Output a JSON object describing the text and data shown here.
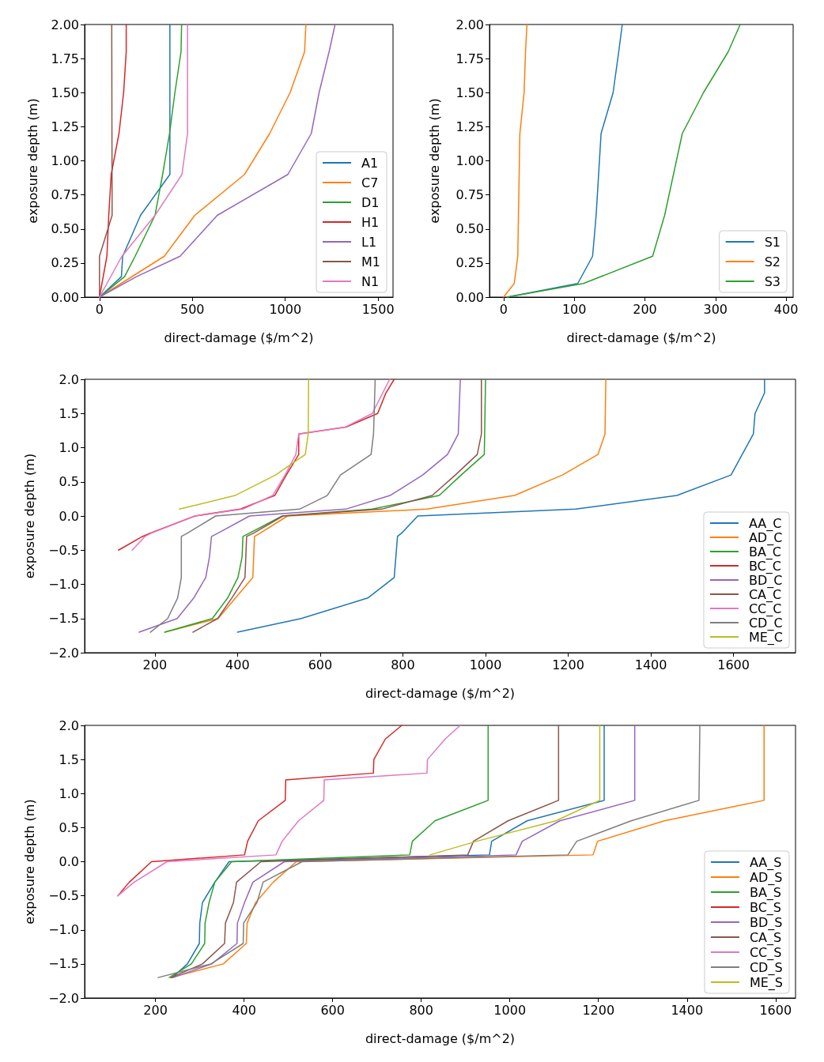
{
  "chart_data": [
    {
      "type": "line",
      "xlabel": "direct-damage ($/m^2)",
      "ylabel": "exposure depth (m)",
      "xlim": [
        -80,
        1580
      ],
      "xticks": [
        0,
        500,
        1000,
        1500
      ],
      "ylim": [
        0,
        2
      ],
      "yticks": [
        {
          "value": 0,
          "label": "0.00"
        },
        {
          "value": 0.25,
          "label": "0.25"
        },
        {
          "value": 0.5,
          "label": "0.50"
        },
        {
          "value": 0.75,
          "label": "0.75"
        },
        {
          "value": 1,
          "label": "1.00"
        },
        {
          "value": 1.25,
          "label": "1.25"
        },
        {
          "value": 1.5,
          "label": "1.50"
        },
        {
          "value": 1.75,
          "label": "1.75"
        },
        {
          "value": 2,
          "label": "2.00"
        }
      ],
      "legend": "bottom right",
      "series": [
        {
          "name": "A1",
          "color": "#1f77b4",
          "x": [
            0,
            118,
            125,
            221,
            379,
            379
          ],
          "values": [
            0,
            0.15,
            0.3,
            0.6,
            0.9,
            2.0
          ]
        },
        {
          "name": "C7",
          "color": "#ff7f0e",
          "x": [
            0,
            349,
            513,
            781,
            916,
            1026,
            1104,
            1111
          ],
          "values": [
            0,
            0.3,
            0.6,
            0.9,
            1.2,
            1.5,
            1.8,
            2.0
          ]
        },
        {
          "name": "D1",
          "color": "#2ca02c",
          "x": [
            0,
            135,
            192,
            299,
            340,
            377,
            406,
            439,
            442
          ],
          "values": [
            0,
            0.15,
            0.3,
            0.6,
            0.9,
            1.2,
            1.5,
            1.8,
            2.0
          ]
        },
        {
          "name": "H1",
          "color": "#d62728",
          "x": [
            0,
            40,
            50,
            63,
            105,
            130,
            144,
            144
          ],
          "values": [
            0,
            0.3,
            0.6,
            0.9,
            1.2,
            1.5,
            1.8,
            2.0
          ]
        },
        {
          "name": "L1",
          "color": "#9467bd",
          "x": [
            0,
            199,
            434,
            634,
            1014,
            1140,
            1182,
            1236,
            1268
          ],
          "values": [
            0,
            0.15,
            0.3,
            0.6,
            0.9,
            1.2,
            1.5,
            1.8,
            2.0
          ]
        },
        {
          "name": "M1",
          "color": "#8c564b",
          "x": [
            0,
            0,
            68,
            66
          ],
          "values": [
            0,
            0.3,
            0.6,
            2.0
          ]
        },
        {
          "name": "N1",
          "color": "#e377c2",
          "x": [
            0,
            121,
            299,
            444,
            474,
            474
          ],
          "values": [
            0,
            0.3,
            0.6,
            0.9,
            1.2,
            2.0
          ]
        }
      ]
    },
    {
      "type": "line",
      "xlabel": "direct-damage ($/m^2)",
      "ylabel": "exposure depth (m)",
      "xlim": [
        -20,
        410
      ],
      "xticks": [
        0,
        100,
        200,
        300,
        400
      ],
      "ylim": [
        0,
        2
      ],
      "yticks": [
        {
          "value": 0,
          "label": "0.00"
        },
        {
          "value": 0.25,
          "label": "0.25"
        },
        {
          "value": 0.5,
          "label": "0.50"
        },
        {
          "value": 0.75,
          "label": "0.75"
        },
        {
          "value": 1,
          "label": "1.00"
        },
        {
          "value": 1.25,
          "label": "1.25"
        },
        {
          "value": 1.5,
          "label": "1.50"
        },
        {
          "value": 1.75,
          "label": "1.75"
        },
        {
          "value": 2,
          "label": "2.00"
        }
      ],
      "legend": "bottom right",
      "series": [
        {
          "name": "S1",
          "color": "#1f77b4",
          "x": [
            5,
            105,
            126,
            131,
            138,
            155,
            163,
            168
          ],
          "values": [
            0,
            0.1,
            0.3,
            0.6,
            1.2,
            1.5,
            1.8,
            2.0
          ]
        },
        {
          "name": "S2",
          "color": "#ff7f0e",
          "x": [
            0,
            15,
            20,
            21,
            23,
            29,
            31,
            33
          ],
          "values": [
            0,
            0.1,
            0.3,
            0.6,
            1.2,
            1.5,
            1.8,
            2.0
          ]
        },
        {
          "name": "S3",
          "color": "#2ca02c",
          "x": [
            5,
            113,
            211,
            228,
            253,
            283,
            318,
            335
          ],
          "values": [
            0,
            0.1,
            0.3,
            0.6,
            1.2,
            1.5,
            1.8,
            2.0
          ]
        }
      ]
    },
    {
      "type": "line",
      "xlabel": "direct-damage ($/m^2)",
      "ylabel": "exposure depth (m)",
      "xlim": [
        30,
        1750
      ],
      "xticks": [
        200,
        400,
        600,
        800,
        1000,
        1200,
        1400,
        1600
      ],
      "ylim": [
        -2,
        2
      ],
      "yticks": [
        {
          "value": -2,
          "label": "−2.0"
        },
        {
          "value": -1.5,
          "label": "−1.5"
        },
        {
          "value": -1,
          "label": "−1.0"
        },
        {
          "value": -0.5,
          "label": "−0.5"
        },
        {
          "value": 0,
          "label": "0.0"
        },
        {
          "value": 0.5,
          "label": "0.5"
        },
        {
          "value": 1,
          "label": "1.0"
        },
        {
          "value": 1.5,
          "label": "1.5"
        },
        {
          "value": 2,
          "label": "2.0"
        }
      ],
      "legend": "bottom right",
      "series": [
        {
          "name": "AA_C",
          "color": "#1f77b4",
          "x": [
            400,
            554,
            715,
            779,
            783,
            787,
            797,
            836,
            1218,
            1463,
            1594,
            1648,
            1652,
            1675,
            1675
          ],
          "values": [
            -1.7,
            -1.5,
            -1.2,
            -0.9,
            -0.6,
            -0.3,
            -0.25,
            0,
            0.1,
            0.3,
            0.6,
            1.2,
            1.5,
            1.8,
            2.0
          ]
        },
        {
          "name": "AD_C",
          "color": "#ff7f0e",
          "x": [
            224,
            353,
            437,
            439,
            441,
            455,
            521,
            858,
            1070,
            1186,
            1272,
            1289,
            1291
          ],
          "values": [
            -1.7,
            -1.5,
            -0.9,
            -0.6,
            -0.3,
            -0.25,
            0,
            0.1,
            0.3,
            0.6,
            0.9,
            1.2,
            2.0
          ]
        },
        {
          "name": "BA_C",
          "color": "#2ca02c",
          "x": [
            224,
            339,
            376,
            401,
            411,
            413,
            429,
            508,
            726,
            888,
            941,
            997,
            1000
          ],
          "values": [
            -1.7,
            -1.5,
            -1.2,
            -0.9,
            -0.6,
            -0.3,
            -0.25,
            0,
            0.1,
            0.3,
            0.6,
            0.9,
            2.0
          ]
        },
        {
          "name": "BC_C",
          "color": "#d62728",
          "x": [
            112,
            170,
            189,
            297,
            406,
            490,
            518,
            548,
            548,
            662,
            739,
            759,
            779
          ],
          "values": [
            -0.5,
            -0.3,
            -0.25,
            0,
            0.1,
            0.3,
            0.6,
            0.9,
            1.2,
            1.3,
            1.5,
            1.8,
            2.0
          ]
        },
        {
          "name": "BD_C",
          "color": "#9467bd",
          "x": [
            162,
            254,
            294,
            323,
            332,
            337,
            353,
            429,
            662,
            769,
            848,
            908,
            934,
            939
          ],
          "values": [
            -1.7,
            -1.5,
            -1.2,
            -0.9,
            -0.6,
            -0.3,
            -0.25,
            0,
            0.1,
            0.3,
            0.6,
            0.9,
            1.2,
            2.0
          ]
        },
        {
          "name": "CA_C",
          "color": "#8c564b",
          "x": [
            292,
            352,
            386,
            418,
            420,
            422,
            439,
            510,
            749,
            871,
            927,
            980,
            990,
            990
          ],
          "values": [
            -1.7,
            -1.5,
            -1.2,
            -0.9,
            -0.6,
            -0.3,
            -0.25,
            0,
            0.1,
            0.3,
            0.6,
            0.9,
            1.2,
            2.0
          ]
        },
        {
          "name": "CC_C",
          "color": "#e377c2",
          "x": [
            145,
            176,
            192,
            297,
            413,
            485,
            515,
            541,
            548,
            660,
            726,
            768
          ],
          "values": [
            -0.5,
            -0.3,
            -0.25,
            0,
            0.1,
            0.3,
            0.6,
            0.9,
            1.2,
            1.3,
            1.5,
            2.0
          ]
        },
        {
          "name": "CD_C",
          "color": "#7f7f7f",
          "x": [
            189,
            231,
            255,
            264,
            264,
            264,
            279,
            347,
            550,
            617,
            649,
            723,
            729,
            733
          ],
          "values": [
            -1.7,
            -1.5,
            -1.2,
            -0.9,
            -0.6,
            -0.3,
            -0.25,
            0,
            0.1,
            0.3,
            0.6,
            0.9,
            1.2,
            2.0
          ]
        },
        {
          "name": "ME_C",
          "color": "#bcbd22",
          "x": [
            259,
            394,
            492,
            564,
            571,
            572
          ],
          "values": [
            0.1,
            0.3,
            0.6,
            0.9,
            1.2,
            2.0
          ]
        }
      ]
    },
    {
      "type": "line",
      "xlabel": "direct-damage ($/m^2)",
      "ylabel": "exposure depth (m)",
      "xlim": [
        40,
        1645
      ],
      "xticks": [
        200,
        400,
        600,
        800,
        1000,
        1200,
        1400,
        1600
      ],
      "ylim": [
        -2,
        2
      ],
      "yticks": [
        {
          "value": -2,
          "label": "−2.0"
        },
        {
          "value": -1.5,
          "label": "−1.5"
        },
        {
          "value": -1,
          "label": "−1.0"
        },
        {
          "value": -0.5,
          "label": "−0.5"
        },
        {
          "value": 0,
          "label": "0.0"
        },
        {
          "value": 0.5,
          "label": "0.5"
        },
        {
          "value": 1,
          "label": "1.0"
        },
        {
          "value": 1.5,
          "label": "1.5"
        },
        {
          "value": 2,
          "label": "2.0"
        }
      ],
      "legend": "bottom right",
      "series": [
        {
          "name": "AA_S",
          "color": "#1f77b4",
          "x": [
            238,
            272,
            299,
            300,
            306,
            334,
            366,
            954,
            959,
            1039,
            1213,
            1213
          ],
          "values": [
            -1.7,
            -1.5,
            -1.2,
            -0.9,
            -0.6,
            -0.3,
            0,
            0.1,
            0.3,
            0.6,
            0.9,
            2.0
          ]
        },
        {
          "name": "AD_S",
          "color": "#ff7f0e",
          "x": [
            235,
            353,
            405,
            407,
            426,
            466,
            518,
            1188,
            1198,
            1349,
            1574,
            1574
          ],
          "values": [
            -1.7,
            -1.5,
            -1.2,
            -0.9,
            -0.6,
            -0.3,
            0,
            0.1,
            0.3,
            0.6,
            0.9,
            2.0
          ]
        },
        {
          "name": "BA_S",
          "color": "#2ca02c",
          "x": [
            231,
            281,
            311,
            312,
            321,
            334,
            372,
            774,
            780,
            831,
            951,
            951
          ],
          "values": [
            -1.7,
            -1.5,
            -1.2,
            -0.9,
            -0.6,
            -0.3,
            0,
            0.1,
            0.3,
            0.6,
            0.9,
            2.0
          ]
        },
        {
          "name": "BC_S",
          "color": "#d62728",
          "x": [
            115,
            141,
            191,
            401,
            408,
            432,
            493,
            494,
            692,
            693,
            719,
            756
          ],
          "values": [
            -0.5,
            -0.3,
            0,
            0.1,
            0.3,
            0.6,
            0.9,
            1.2,
            1.3,
            1.5,
            1.8,
            2.0
          ]
        },
        {
          "name": "BD_S",
          "color": "#9467bd",
          "x": [
            240,
            327,
            384,
            385,
            401,
            420,
            491,
            1014,
            1028,
            1113,
            1282,
            1282
          ],
          "values": [
            -1.7,
            -1.5,
            -1.2,
            -0.9,
            -0.6,
            -0.3,
            0,
            0.1,
            0.3,
            0.6,
            0.9,
            2.0
          ]
        },
        {
          "name": "CA_S",
          "color": "#8c564b",
          "x": [
            235,
            306,
            356,
            358,
            376,
            383,
            438,
            905,
            918,
            996,
            1110,
            1110
          ],
          "values": [
            -1.7,
            -1.5,
            -1.2,
            -0.9,
            -0.6,
            -0.3,
            0,
            0.1,
            0.3,
            0.6,
            0.9,
            2.0
          ]
        },
        {
          "name": "CC_S",
          "color": "#e377c2",
          "x": [
            115,
            152,
            226,
            472,
            486,
            523,
            580,
            581,
            813,
            814,
            854,
            888
          ],
          "values": [
            -0.5,
            -0.3,
            0,
            0.1,
            0.3,
            0.6,
            0.9,
            1.2,
            1.3,
            1.5,
            1.8,
            2.0
          ]
        },
        {
          "name": "CD_S",
          "color": "#7f7f7f",
          "x": [
            206,
            325,
            398,
            399,
            429,
            443,
            531,
            1131,
            1151,
            1274,
            1427,
            1429
          ],
          "values": [
            -1.7,
            -1.5,
            -1.2,
            -0.9,
            -0.6,
            -0.3,
            0,
            0.1,
            0.3,
            0.6,
            0.9,
            2.0
          ]
        },
        {
          "name": "ME_S",
          "color": "#bcbd22",
          "x": [
            820,
            925,
            1104,
            1203,
            1203
          ],
          "values": [
            0.1,
            0.3,
            0.6,
            0.9,
            2.0
          ]
        }
      ]
    }
  ]
}
